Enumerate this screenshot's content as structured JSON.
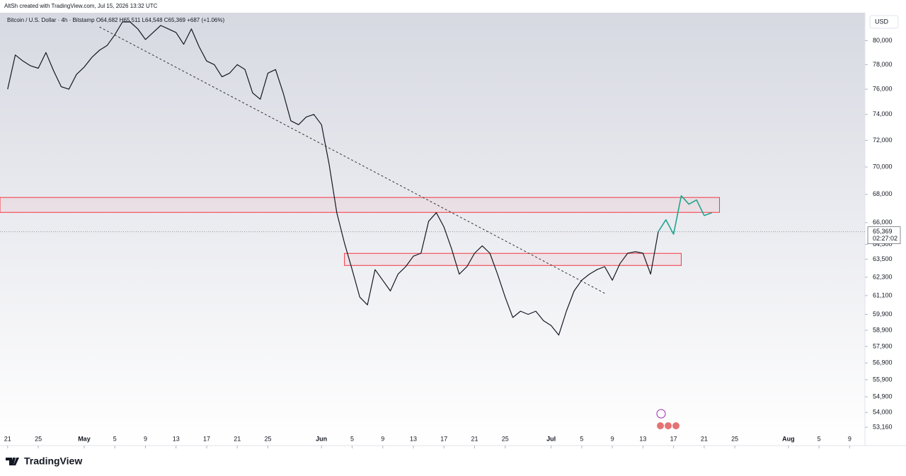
{
  "header": "AltSh created with TradingView.com, Jul 15, 2026 13:32 UTC",
  "legend": "Bitcoin / U.S. Dollar · 4h · Bitstamp  O64,682 H65,511 L64,548 C65,369 +687 (+1.06%)",
  "currency": "USD",
  "last_price": {
    "value": 65369,
    "label": "65,369"
  },
  "countdown": "02:27:02",
  "footer": "TradingView",
  "chart_data": {
    "type": "line",
    "log_scale": true,
    "xlim": [
      "2026-04-20",
      "2026-08-11"
    ],
    "ylim": [
      52140,
      82400
    ],
    "xticks": [
      {
        "value": "2026-04-21",
        "label": "21"
      },
      {
        "value": "2026-04-25",
        "label": "25"
      },
      {
        "value": "2026-05-01",
        "label": "May"
      },
      {
        "value": "2026-05-05",
        "label": "5"
      },
      {
        "value": "2026-05-09",
        "label": "9"
      },
      {
        "value": "2026-05-13",
        "label": "13"
      },
      {
        "value": "2026-05-17",
        "label": "17"
      },
      {
        "value": "2026-05-21",
        "label": "21"
      },
      {
        "value": "2026-05-25",
        "label": "25"
      },
      {
        "value": "2026-06-01",
        "label": "Jun"
      },
      {
        "value": "2026-06-05",
        "label": "5"
      },
      {
        "value": "2026-06-09",
        "label": "9"
      },
      {
        "value": "2026-06-13",
        "label": "13"
      },
      {
        "value": "2026-06-17",
        "label": "17"
      },
      {
        "value": "2026-06-21",
        "label": "21"
      },
      {
        "value": "2026-06-25",
        "label": "25"
      },
      {
        "value": "2026-07-01",
        "label": "Jul"
      },
      {
        "value": "2026-07-05",
        "label": "5"
      },
      {
        "value": "2026-07-09",
        "label": "9"
      },
      {
        "value": "2026-07-13",
        "label": "13"
      },
      {
        "value": "2026-07-17",
        "label": "17"
      },
      {
        "value": "2026-07-21",
        "label": "21"
      },
      {
        "value": "2026-07-25",
        "label": "25"
      },
      {
        "value": "2026-08-01",
        "label": "Aug"
      },
      {
        "value": "2026-08-05",
        "label": "5"
      },
      {
        "value": "2026-08-09",
        "label": "9"
      }
    ],
    "yticks": [
      {
        "value": 80000,
        "label": "80,000"
      },
      {
        "value": 78000,
        "label": "78,000"
      },
      {
        "value": 76000,
        "label": "76,000"
      },
      {
        "value": 74000,
        "label": "74,000"
      },
      {
        "value": 72000,
        "label": "72,000"
      },
      {
        "value": 70000,
        "label": "70,000"
      },
      {
        "value": 68000,
        "label": "68,000"
      },
      {
        "value": 66000,
        "label": "66,000"
      },
      {
        "value": 64500,
        "label": "64,500"
      },
      {
        "value": 63500,
        "label": "63,500"
      },
      {
        "value": 62300,
        "label": "62,300"
      },
      {
        "value": 61100,
        "label": "61,100"
      },
      {
        "value": 59900,
        "label": "59,900"
      },
      {
        "value": 58900,
        "label": "58,900"
      },
      {
        "value": 57900,
        "label": "57,900"
      },
      {
        "value": 56900,
        "label": "56,900"
      },
      {
        "value": 55900,
        "label": "55,900"
      },
      {
        "value": 54900,
        "label": "54,900"
      },
      {
        "value": 54000,
        "label": "54,000"
      },
      {
        "value": 53160,
        "label": "53,160"
      }
    ],
    "series": [
      {
        "color": "#131722",
        "x": [
          "2026-04-21",
          "2026-04-22",
          "2026-04-23",
          "2026-04-24",
          "2026-04-25",
          "2026-04-26",
          "2026-04-27",
          "2026-04-28",
          "2026-04-29",
          "2026-04-30",
          "2026-05-01",
          "2026-05-02",
          "2026-05-03",
          "2026-05-04",
          "2026-05-05",
          "2026-05-06",
          "2026-05-07",
          "2026-05-08",
          "2026-05-09",
          "2026-05-10",
          "2026-05-11",
          "2026-05-12",
          "2026-05-13",
          "2026-05-14",
          "2026-05-15",
          "2026-05-16",
          "2026-05-17",
          "2026-05-18",
          "2026-05-19",
          "2026-05-20",
          "2026-05-21",
          "2026-05-22",
          "2026-05-23",
          "2026-05-24",
          "2026-05-25",
          "2026-05-26",
          "2026-05-27",
          "2026-05-28",
          "2026-05-29",
          "2026-05-30",
          "2026-05-31",
          "2026-06-01",
          "2026-06-02",
          "2026-06-03",
          "2026-06-04",
          "2026-06-05",
          "2026-06-06",
          "2026-06-07",
          "2026-06-08",
          "2026-06-09",
          "2026-06-10",
          "2026-06-11",
          "2026-06-12",
          "2026-06-13",
          "2026-06-14",
          "2026-06-15",
          "2026-06-16",
          "2026-06-17",
          "2026-06-18",
          "2026-06-19",
          "2026-06-20",
          "2026-06-21",
          "2026-06-22",
          "2026-06-23",
          "2026-06-24",
          "2026-06-25",
          "2026-06-26",
          "2026-06-27",
          "2026-06-28",
          "2026-06-29",
          "2026-06-30",
          "2026-07-01",
          "2026-07-02",
          "2026-07-03",
          "2026-07-04",
          "2026-07-05",
          "2026-07-06",
          "2026-07-07",
          "2026-07-08",
          "2026-07-09",
          "2026-07-10",
          "2026-07-11",
          "2026-07-12",
          "2026-07-13",
          "2026-07-14",
          "2026-07-15"
        ],
        "values": [
          76000,
          78800,
          78300,
          77900,
          77700,
          79000,
          77500,
          76200,
          76000,
          77200,
          77800,
          78600,
          79200,
          79600,
          80500,
          81600,
          81600,
          81000,
          80100,
          80700,
          81300,
          81000,
          80700,
          79700,
          81000,
          79500,
          78300,
          78000,
          77000,
          77300,
          78000,
          77600,
          75700,
          75200,
          77300,
          77600,
          75700,
          73500,
          73200,
          73800,
          74000,
          73200,
          70200,
          66700,
          64600,
          62800,
          61000,
          60500,
          62800,
          62100,
          61400,
          62500,
          63000,
          63700,
          63900,
          66100,
          66700,
          65700,
          64200,
          62500,
          63000,
          63900,
          64400,
          63900,
          62500,
          61000,
          59700,
          60100,
          59900,
          60100,
          59500,
          59200,
          58600,
          60100,
          61400,
          62100,
          62500,
          62800,
          63000,
          62100,
          63200,
          63900,
          64000,
          63900,
          62500,
          65369
        ]
      },
      {
        "color": "#22a38e",
        "x": [
          "2026-07-15",
          "2026-07-16",
          "2026-07-17",
          "2026-07-18",
          "2026-07-19",
          "2026-07-20",
          "2026-07-21",
          "2026-07-22"
        ],
        "values": [
          65369,
          66200,
          65200,
          67900,
          67300,
          67600,
          66500,
          66700
        ]
      }
    ],
    "zones": [
      {
        "color": "#f23645",
        "x": [
          "2026-04-20",
          "2026-07-23"
        ],
        "values": [
          66720,
          67780
        ]
      },
      {
        "color": "#f23645",
        "x": [
          "2026-06-04",
          "2026-07-18"
        ],
        "values": [
          63080,
          63890
        ]
      }
    ],
    "trendline": {
      "color": "#333333",
      "x": [
        "2026-05-03",
        "2026-07-08"
      ],
      "values": [
        81170,
        61250
      ]
    }
  }
}
